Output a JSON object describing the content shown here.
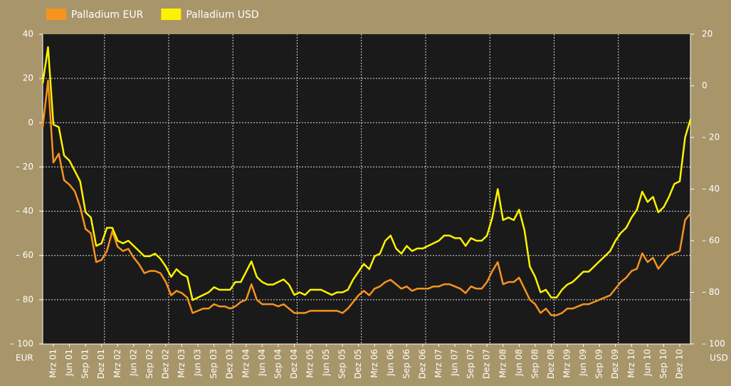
{
  "chart_data": {
    "type": "line",
    "categories": [
      null,
      null,
      "Mrz 01",
      null,
      null,
      "Jun 01",
      null,
      null,
      "Sep 01",
      null,
      null,
      "Dez 01",
      null,
      null,
      "Mrz 02",
      null,
      null,
      "Jun 02",
      null,
      null,
      "Sep 02",
      null,
      null,
      "Dez 02",
      null,
      null,
      "Mrz 03",
      null,
      null,
      "Jun 03",
      null,
      null,
      "Sep 03",
      null,
      null,
      "Dez 03",
      null,
      null,
      "Mrz 04",
      null,
      null,
      "Jun 04",
      null,
      null,
      "Sep 04",
      null,
      null,
      "Dez 04",
      null,
      null,
      "Mrz 05",
      null,
      null,
      "Jun 05",
      null,
      null,
      "Sep 05",
      null,
      null,
      "Dez 05",
      null,
      null,
      "Mrz 06",
      null,
      null,
      "Jun 06",
      null,
      null,
      "Sep 06",
      null,
      null,
      "Dez 06",
      null,
      null,
      "Mrz 07",
      null,
      null,
      "Jun 07",
      null,
      null,
      "Sep 07",
      null,
      null,
      "Dez 07",
      null,
      null,
      "Mrz 08",
      null,
      null,
      "Jun 08",
      null,
      null,
      "Sep 08",
      null,
      null,
      "Dez 08",
      null,
      null,
      "Mrz 09",
      null,
      null,
      "Jun 09",
      null,
      null,
      "Sep 09",
      null,
      null,
      "Dez 09",
      null,
      null,
      "Mrz 10",
      null,
      null,
      "Jun 10",
      null,
      null,
      "Sep 10",
      null,
      null,
      "Dez 10",
      null,
      null
    ],
    "series": [
      {
        "name": "Palladium EUR",
        "color": "#f7941d",
        "values": [
          -2,
          19,
          -18,
          -14,
          -26,
          -28,
          -31,
          -38,
          -48,
          -50,
          -63,
          -62,
          -58,
          -49,
          -56,
          -58,
          -57,
          -61,
          -64,
          -68,
          -67,
          -67,
          -68,
          -72,
          -78,
          -76,
          -77,
          -79,
          -86,
          -85,
          -84,
          -84,
          -82,
          -83,
          -83,
          -84,
          -83,
          -81,
          -80,
          -73,
          -80,
          -82,
          -82,
          -82,
          -83,
          -82,
          -84,
          -86,
          -86,
          -86,
          -85,
          -85,
          -85,
          -85,
          -85,
          -85,
          -86,
          -84,
          -81,
          -78,
          -76,
          -78,
          -75,
          -74,
          -72,
          -71,
          -73,
          -75,
          -74,
          -76,
          -75,
          -75,
          -75,
          -74,
          -74,
          -73,
          -73,
          -74,
          -75,
          -77,
          -74,
          -75,
          -75,
          -72,
          -67,
          -63,
          -73,
          -72,
          -72,
          -70,
          -75,
          -80,
          -82,
          -86,
          -84,
          -87,
          -87,
          -86,
          -84,
          -84,
          -83,
          -82,
          -82,
          -81,
          -80,
          -79,
          -78,
          -75,
          -72,
          -70,
          -67,
          -66,
          -59,
          -63,
          -61,
          -66,
          -63,
          -60,
          -59,
          -58,
          -44,
          -41
        ]
      },
      {
        "name": "Palladium USD",
        "color": "#fff200",
        "axis": "y2",
        "values": [
          1,
          15,
          -15,
          -16,
          -27,
          -29,
          -33,
          -37,
          -49,
          -51,
          -62,
          -61,
          -55,
          -55,
          -60,
          -61,
          -60,
          -62,
          -64,
          -66,
          -66,
          -65,
          -67,
          -70,
          -74,
          -71,
          -73,
          -74,
          -83,
          -82,
          -81,
          -80,
          -78,
          -79,
          -79,
          -79,
          -76,
          -76,
          -72,
          -68,
          -74,
          -76,
          -77,
          -77,
          -76,
          -75,
          -77,
          -81,
          -80,
          -81,
          -79,
          -79,
          -79,
          -80,
          -81,
          -80,
          -80,
          -79,
          -75,
          -72,
          -69,
          -71,
          -66,
          -65,
          -60,
          -58,
          -63,
          -65,
          -62,
          -64,
          -63,
          -63,
          -62,
          -61,
          -60,
          -58,
          -58,
          -59,
          -59,
          -62,
          -59,
          -60,
          -60,
          -58,
          -51,
          -40,
          -52,
          -51,
          -52,
          -48,
          -56,
          -70,
          -74,
          -80,
          -79,
          -82,
          -82,
          -79,
          -77,
          -76,
          -74,
          -72,
          -72,
          -70,
          -68,
          -66,
          -64,
          -60,
          -57,
          -55,
          -51,
          -48,
          -41,
          -45,
          -43,
          -49,
          -47,
          -43,
          -38,
          -37,
          -20,
          -13
        ]
      }
    ],
    "ylim": [
      -100,
      40
    ],
    "yticks": [
      {
        "value": -100,
        "label": "– 100"
      },
      {
        "value": -80,
        "label": "– 80"
      },
      {
        "value": -60,
        "label": "– 60"
      },
      {
        "value": -40,
        "label": "– 40"
      },
      {
        "value": -20,
        "label": "– 20"
      },
      0,
      20,
      40
    ],
    "y2lim": [
      -100,
      20
    ],
    "y2ticks": [
      {
        "value": -100,
        "label": "– 100"
      },
      {
        "value": -80,
        "label": "– 80"
      },
      {
        "value": -60,
        "label": "– 60"
      },
      {
        "value": -40,
        "label": "– 40"
      },
      {
        "value": -20,
        "label": "– 20"
      },
      0,
      20
    ],
    "ylabel": "EUR",
    "y2label": "USD",
    "grid": true,
    "legend": "top-left"
  }
}
